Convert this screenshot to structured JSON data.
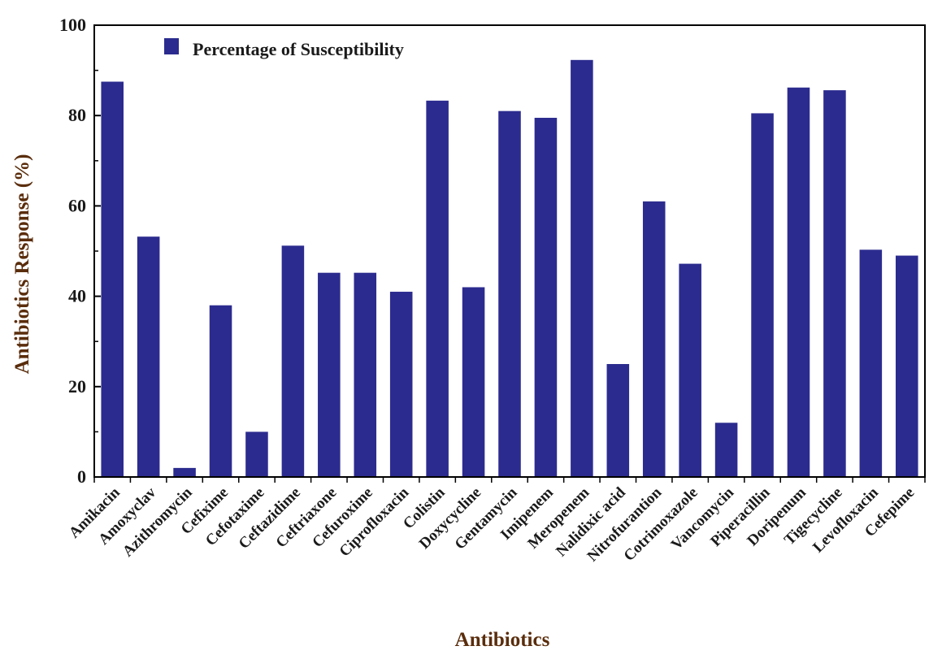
{
  "chart_data": {
    "type": "bar",
    "title": "",
    "xlabel": "Antibiotics",
    "ylabel": "Antibiotics Response (%)",
    "ylim": [
      0,
      100
    ],
    "yticks": [
      0,
      20,
      40,
      60,
      80,
      100
    ],
    "grid": false,
    "legend_position": "top-left",
    "categories": [
      "Amikacin",
      "Amoxyclav",
      "Azithromycin",
      "Cefixime",
      "Cefotaxime",
      "Ceftazidime",
      "Ceftriaxone",
      "Cefuroxime",
      "Ciprofloxacin",
      "Colistin",
      "Doxycycline",
      "Gentamycin",
      "Imipenem",
      "Meropenem",
      "Nalidixic acid",
      "Nitrofurantion",
      "Cotrimoxazole",
      "Vancomycin",
      "Piperacillin",
      "Doripenum",
      "Tigecycline",
      "Levofloxacin",
      "Cefepime"
    ],
    "series": [
      {
        "name": "Percentage of Susceptibility",
        "color": "#2b2b8f",
        "values": [
          87.5,
          53.2,
          2.0,
          38.0,
          10.0,
          51.2,
          45.2,
          45.2,
          41.0,
          83.3,
          42.0,
          81.0,
          79.5,
          92.3,
          25.0,
          61.0,
          47.2,
          12.0,
          80.5,
          86.2,
          85.6,
          50.3,
          49.0
        ]
      }
    ]
  }
}
